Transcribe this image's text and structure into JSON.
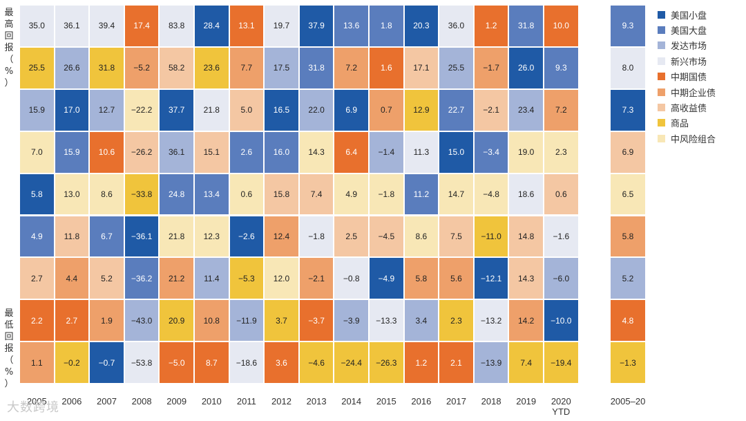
{
  "chart_data": {
    "type": "heatmap",
    "title": "",
    "ylabel_top": [
      "最",
      "高",
      "回",
      "报",
      "（",
      "%",
      "）"
    ],
    "ylabel_bottom": [
      "最",
      "低",
      "回",
      "报",
      "（",
      "%",
      "）"
    ],
    "categories": [
      "2005",
      "2006",
      "2007",
      "2008",
      "2009",
      "2010",
      "2011",
      "2012",
      "2013",
      "2014",
      "2015",
      "2016",
      "2017",
      "2018",
      "2019",
      "2020",
      "2005–20"
    ],
    "category_sublabels": [
      "",
      "",
      "",
      "",
      "",
      "",
      "",
      "",
      "",
      "",
      "",
      "",
      "",
      "",
      "",
      "YTD",
      ""
    ],
    "legend": [
      {
        "key": "us_small",
        "name": "美国小盘",
        "color": "#1f5aa6"
      },
      {
        "key": "us_large",
        "name": "美国大盘",
        "color": "#5a7dbd"
      },
      {
        "key": "dev",
        "name": "发达市场",
        "color": "#a4b4d8"
      },
      {
        "key": "em",
        "name": "新兴市场",
        "color": "#e6e9f2"
      },
      {
        "key": "treas",
        "name": "中期国债",
        "color": "#e8702d"
      },
      {
        "key": "corp",
        "name": "中期企业债",
        "color": "#eea06a"
      },
      {
        "key": "hy",
        "name": "高收益债",
        "color": "#f4c7a3"
      },
      {
        "key": "comm",
        "name": "商品",
        "color": "#f0c43c"
      },
      {
        "key": "mod",
        "name": "中风险组合",
        "color": "#f8e7b6"
      }
    ],
    "columns": [
      {
        "cells": [
          {
            "v": "35.0",
            "c": "em"
          },
          {
            "v": "25.5",
            "c": "comm"
          },
          {
            "v": "15.9",
            "c": "dev"
          },
          {
            "v": "7.0",
            "c": "mod"
          },
          {
            "v": "5.8",
            "c": "us_small"
          },
          {
            "v": "4.9",
            "c": "us_large"
          },
          {
            "v": "2.7",
            "c": "hy"
          },
          {
            "v": "2.2",
            "c": "treas"
          },
          {
            "v": "1.1",
            "c": "corp"
          }
        ]
      },
      {
        "cells": [
          {
            "v": "36.1",
            "c": "em"
          },
          {
            "v": "26.6",
            "c": "dev"
          },
          {
            "v": "17.0",
            "c": "us_small"
          },
          {
            "v": "15.9",
            "c": "us_large"
          },
          {
            "v": "13.0",
            "c": "mod"
          },
          {
            "v": "11.8",
            "c": "hy"
          },
          {
            "v": "4.4",
            "c": "corp"
          },
          {
            "v": "2.7",
            "c": "treas"
          },
          {
            "v": "−0.2",
            "c": "comm"
          }
        ]
      },
      {
        "cells": [
          {
            "v": "39.4",
            "c": "em"
          },
          {
            "v": "31.8",
            "c": "comm"
          },
          {
            "v": "12.7",
            "c": "dev"
          },
          {
            "v": "10.6",
            "c": "treas"
          },
          {
            "v": "8.6",
            "c": "mod"
          },
          {
            "v": "6.7",
            "c": "us_large"
          },
          {
            "v": "5.2",
            "c": "hy"
          },
          {
            "v": "1.9",
            "c": "corp"
          },
          {
            "v": "−0.7",
            "c": "us_small"
          }
        ]
      },
      {
        "cells": [
          {
            "v": "17.4",
            "c": "treas"
          },
          {
            "v": "−5.2",
            "c": "corp"
          },
          {
            "v": "−22.2",
            "c": "mod"
          },
          {
            "v": "−26.2",
            "c": "hy"
          },
          {
            "v": "−33.8",
            "c": "comm"
          },
          {
            "v": "−36.1",
            "c": "us_small"
          },
          {
            "v": "−36.2",
            "c": "us_large"
          },
          {
            "v": "−43.0",
            "c": "dev"
          },
          {
            "v": "−53.8",
            "c": "em"
          }
        ]
      },
      {
        "cells": [
          {
            "v": "83.8",
            "c": "em"
          },
          {
            "v": "58.2",
            "c": "hy"
          },
          {
            "v": "37.7",
            "c": "us_small"
          },
          {
            "v": "36.1",
            "c": "dev"
          },
          {
            "v": "24.8",
            "c": "us_large"
          },
          {
            "v": "21.8",
            "c": "mod"
          },
          {
            "v": "21.2",
            "c": "corp"
          },
          {
            "v": "20.9",
            "c": "comm"
          },
          {
            "v": "−5.0",
            "c": "treas"
          }
        ]
      },
      {
        "cells": [
          {
            "v": "28.4",
            "c": "us_small"
          },
          {
            "v": "23.6",
            "c": "comm"
          },
          {
            "v": "21.8",
            "c": "em"
          },
          {
            "v": "15.1",
            "c": "hy"
          },
          {
            "v": "13.4",
            "c": "us_large"
          },
          {
            "v": "12.3",
            "c": "mod"
          },
          {
            "v": "11.4",
            "c": "dev"
          },
          {
            "v": "10.8",
            "c": "corp"
          },
          {
            "v": "8.7",
            "c": "treas"
          }
        ]
      },
      {
        "cells": [
          {
            "v": "13.1",
            "c": "treas"
          },
          {
            "v": "7.7",
            "c": "corp"
          },
          {
            "v": "5.0",
            "c": "hy"
          },
          {
            "v": "2.6",
            "c": "us_large"
          },
          {
            "v": "0.6",
            "c": "mod"
          },
          {
            "v": "−2.6",
            "c": "us_small"
          },
          {
            "v": "−5.3",
            "c": "comm"
          },
          {
            "v": "−11.9",
            "c": "dev"
          },
          {
            "v": "−18.6",
            "c": "em"
          }
        ]
      },
      {
        "cells": [
          {
            "v": "19.7",
            "c": "em"
          },
          {
            "v": "17.5",
            "c": "dev"
          },
          {
            "v": "16.5",
            "c": "us_small"
          },
          {
            "v": "16.0",
            "c": "us_large"
          },
          {
            "v": "15.8",
            "c": "hy"
          },
          {
            "v": "12.4",
            "c": "corp"
          },
          {
            "v": "12.0",
            "c": "mod"
          },
          {
            "v": "3.7",
            "c": "comm"
          },
          {
            "v": "3.6",
            "c": "treas"
          }
        ]
      },
      {
        "cells": [
          {
            "v": "37.9",
            "c": "us_small"
          },
          {
            "v": "31.8",
            "c": "us_large"
          },
          {
            "v": "22.0",
            "c": "dev"
          },
          {
            "v": "14.3",
            "c": "mod"
          },
          {
            "v": "7.4",
            "c": "hy"
          },
          {
            "v": "−1.8",
            "c": "em"
          },
          {
            "v": "−2.1",
            "c": "corp"
          },
          {
            "v": "−3.7",
            "c": "treas"
          },
          {
            "v": "−4.6",
            "c": "comm"
          }
        ]
      },
      {
        "cells": [
          {
            "v": "13.6",
            "c": "us_large"
          },
          {
            "v": "7.2",
            "c": "corp"
          },
          {
            "v": "6.9",
            "c": "us_small"
          },
          {
            "v": "6.4",
            "c": "treas"
          },
          {
            "v": "4.9",
            "c": "mod"
          },
          {
            "v": "2.5",
            "c": "hy"
          },
          {
            "v": "−0.8",
            "c": "em"
          },
          {
            "v": "−3.9",
            "c": "dev"
          },
          {
            "v": "−24.4",
            "c": "comm"
          }
        ]
      },
      {
        "cells": [
          {
            "v": "1.8",
            "c": "us_large"
          },
          {
            "v": "1.6",
            "c": "treas"
          },
          {
            "v": "0.7",
            "c": "corp"
          },
          {
            "v": "−1.4",
            "c": "dev"
          },
          {
            "v": "−1.8",
            "c": "mod"
          },
          {
            "v": "−4.5",
            "c": "hy"
          },
          {
            "v": "−4.9",
            "c": "us_small"
          },
          {
            "v": "−13.3",
            "c": "em"
          },
          {
            "v": "−26.3",
            "c": "comm"
          }
        ]
      },
      {
        "cells": [
          {
            "v": "20.3",
            "c": "us_small"
          },
          {
            "v": "17.1",
            "c": "hy"
          },
          {
            "v": "12.9",
            "c": "comm"
          },
          {
            "v": "11.3",
            "c": "em"
          },
          {
            "v": "11.2",
            "c": "us_large"
          },
          {
            "v": "8.6",
            "c": "mod"
          },
          {
            "v": "5.8",
            "c": "corp"
          },
          {
            "v": "3.4",
            "c": "dev"
          },
          {
            "v": "1.2",
            "c": "treas"
          }
        ]
      },
      {
        "cells": [
          {
            "v": "36.0",
            "c": "em"
          },
          {
            "v": "25.5",
            "c": "dev"
          },
          {
            "v": "22.7",
            "c": "us_large"
          },
          {
            "v": "15.0",
            "c": "us_small"
          },
          {
            "v": "14.7",
            "c": "mod"
          },
          {
            "v": "7.5",
            "c": "hy"
          },
          {
            "v": "5.6",
            "c": "corp"
          },
          {
            "v": "2.3",
            "c": "comm"
          },
          {
            "v": "2.1",
            "c": "treas"
          }
        ]
      },
      {
        "cells": [
          {
            "v": "1.2",
            "c": "treas"
          },
          {
            "v": "−1.7",
            "c": "corp"
          },
          {
            "v": "−2.1",
            "c": "hy"
          },
          {
            "v": "−3.4",
            "c": "us_large"
          },
          {
            "v": "−4.8",
            "c": "mod"
          },
          {
            "v": "−11.0",
            "c": "comm"
          },
          {
            "v": "−12.1",
            "c": "us_small"
          },
          {
            "v": "−13.2",
            "c": "em"
          },
          {
            "v": "−13.9",
            "c": "dev"
          }
        ]
      },
      {
        "cells": [
          {
            "v": "31.8",
            "c": "us_large"
          },
          {
            "v": "26.0",
            "c": "us_small"
          },
          {
            "v": "23.4",
            "c": "dev"
          },
          {
            "v": "19.0",
            "c": "mod"
          },
          {
            "v": "18.6",
            "c": "em"
          },
          {
            "v": "14.8",
            "c": "hy"
          },
          {
            "v": "14.3",
            "c": "hy"
          },
          {
            "v": "14.2",
            "c": "corp"
          },
          {
            "v": "7.4",
            "c": "comm"
          }
        ]
      },
      {
        "cells": [
          {
            "v": "10.0",
            "c": "treas"
          },
          {
            "v": "9.3",
            "c": "us_large"
          },
          {
            "v": "7.2",
            "c": "corp"
          },
          {
            "v": "2.3",
            "c": "mod"
          },
          {
            "v": "0.6",
            "c": "hy"
          },
          {
            "v": "−1.6",
            "c": "em"
          },
          {
            "v": "−6.0",
            "c": "dev"
          },
          {
            "v": "−10.0",
            "c": "us_small"
          },
          {
            "v": "−19.4",
            "c": "comm"
          }
        ]
      },
      {
        "cells": [
          {
            "v": "9.3",
            "c": "us_large"
          },
          {
            "v": "8.0",
            "c": "em"
          },
          {
            "v": "7.3",
            "c": "us_small"
          },
          {
            "v": "6.9",
            "c": "hy"
          },
          {
            "v": "6.5",
            "c": "mod"
          },
          {
            "v": "5.8",
            "c": "corp"
          },
          {
            "v": "5.2",
            "c": "dev"
          },
          {
            "v": "4.8",
            "c": "treas"
          },
          {
            "v": "−1.3",
            "c": "comm"
          }
        ]
      }
    ]
  },
  "watermark": "大数跨境"
}
